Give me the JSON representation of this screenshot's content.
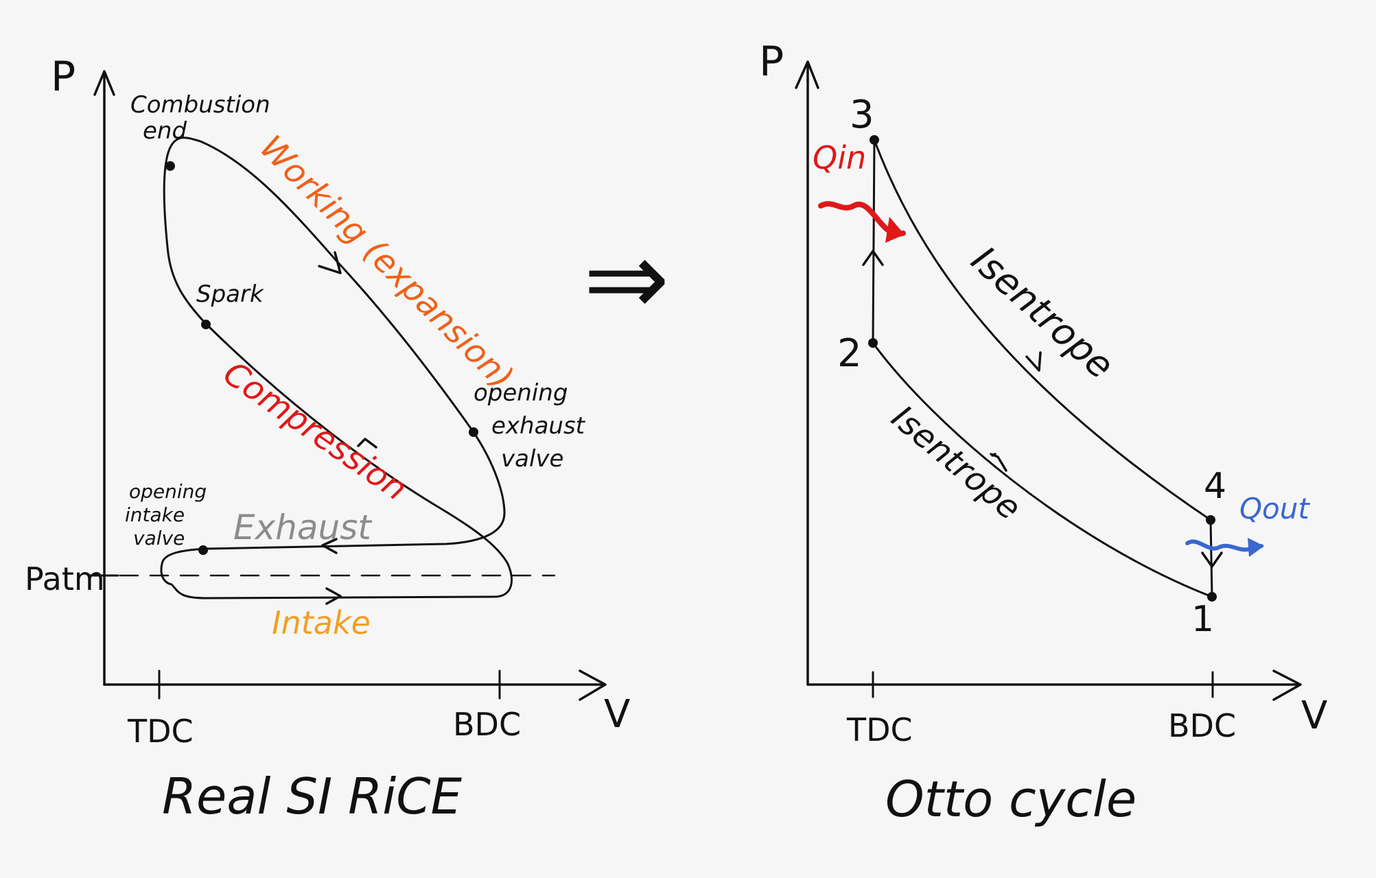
{
  "arrow_between": "⇒",
  "colors": {
    "ink": "#111111",
    "working": "#f06018",
    "compression": "#e01818",
    "exhaust": "#8c8c8c",
    "intake": "#f0a020",
    "qin": "#e01818",
    "qout": "#3a68d0",
    "background": "#f6f6f6"
  },
  "left": {
    "title": "Real SI RiCE",
    "y_axis": "P",
    "x_axis": "V",
    "tick_tdc": "TDC",
    "tick_bdc": "BDC",
    "patm": "Patm",
    "combustion_end_1": "Combustion",
    "combustion_end_2": "end",
    "spark": "Spark",
    "opening_exhaust_1": "opening",
    "opening_exhaust_2": "exhaust",
    "opening_exhaust_3": "valve",
    "opening_intake_1": "opening",
    "opening_intake_2": "intake",
    "opening_intake_3": "valve",
    "working": "Working (expansion)",
    "compression": "Compression",
    "exhaust": "Exhaust",
    "intake": "Intake"
  },
  "right": {
    "title": "Otto cycle",
    "y_axis": "P",
    "x_axis": "V",
    "tick_tdc": "TDC",
    "tick_bdc": "BDC",
    "point_1": "1",
    "point_2": "2",
    "point_3": "3",
    "point_4": "4",
    "qin": "Qin",
    "qout": "Qout",
    "isentrope_upper": "Isentrope",
    "isentrope_lower": "Isentrope"
  }
}
